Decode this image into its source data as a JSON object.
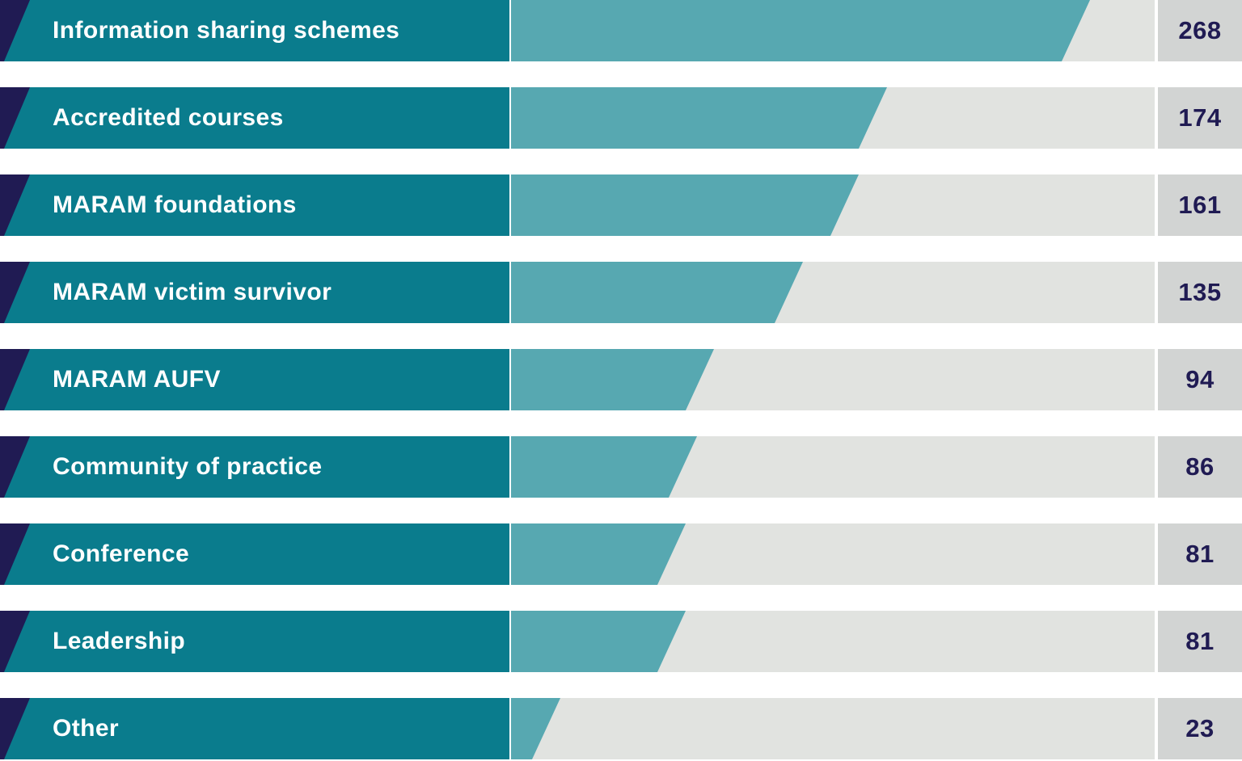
{
  "chart_data": {
    "type": "bar",
    "orientation": "horizontal",
    "title": "",
    "xlabel": "",
    "ylabel": "",
    "categories": [
      "Information sharing schemes",
      "Accredited courses",
      "MARAM foundations",
      "MARAM victim survivor",
      "MARAM AUFV",
      "Community of practice",
      "Conference",
      "Leadership",
      "Other"
    ],
    "values": [
      268,
      174,
      161,
      135,
      94,
      86,
      81,
      81,
      23
    ],
    "xlim": [
      0,
      298
    ],
    "grid": false,
    "legend": false,
    "value_labels_shown": true,
    "bar_style": "parallelogram-slanted-right-edge"
  },
  "colors": {
    "label_teal": "#0a7c8d",
    "bar_teal": "#57a8b1",
    "track_gray": "#e1e3e0",
    "value_box_gray": "#d2d4d3",
    "navy": "#201b53",
    "label_text": "#ffffff",
    "background": "#ffffff"
  }
}
